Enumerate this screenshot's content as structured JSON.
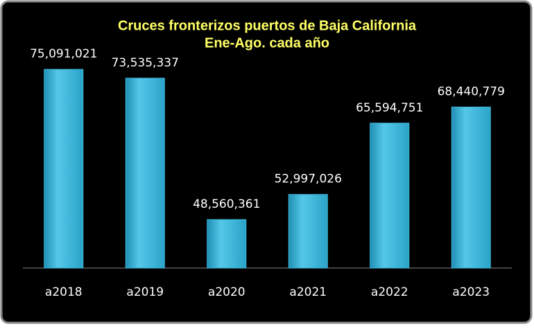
{
  "chart_data": {
    "type": "bar",
    "title": "Cruces fronterizos puertos de Baja California",
    "subtitle": "Ene-Ago. cada año",
    "categories": [
      "a2018",
      "a2019",
      "a2020",
      "a2021",
      "a2022",
      "a2023"
    ],
    "values": [
      75091021,
      73535337,
      48560361,
      52997026,
      65594751,
      68440779
    ],
    "value_labels": [
      "75,091,021",
      "73,535,337",
      "48,560,361",
      "52,997,026",
      "65,594,751",
      "68,440,779"
    ],
    "color": "#3fb8dc",
    "ylim": [
      40000000,
      80000000
    ]
  }
}
